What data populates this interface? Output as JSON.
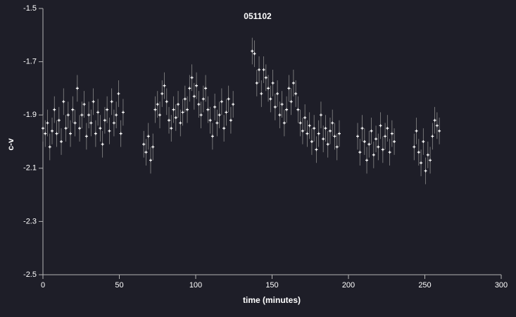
{
  "chart_data": {
    "type": "scatter",
    "title": "051102",
    "x_label": "time (minutes)",
    "y_label": "c-v",
    "xlim": [
      0,
      300
    ],
    "xticks": [
      0,
      50,
      100,
      150,
      200,
      250,
      300
    ],
    "ylim": [
      -2.5,
      -1.5
    ],
    "yticks": [
      -1.5,
      -1.7,
      -1.9,
      -2.1,
      -2.3,
      -2.5
    ],
    "background": "#1e1e28",
    "axis_color": "#b4b4b4",
    "series": [
      {
        "color": "#ffffff",
        "error_color": "#8a8a8a",
        "yerr": 0.05,
        "x": [
          0,
          1.5,
          3,
          4.5,
          6,
          7.5,
          9,
          10.5,
          12,
          13.5,
          15,
          16.5,
          18,
          19.5,
          21,
          22.5,
          24,
          25.5,
          27,
          28.5,
          30,
          31.5,
          33,
          34.5,
          36,
          37.5,
          39,
          40.5,
          42,
          43.5,
          45,
          46.5,
          48,
          49.5,
          51,
          52.5,
          66,
          67.5,
          69,
          70.5,
          72,
          73.5,
          75,
          76.5,
          78,
          79.5,
          81,
          82.5,
          84,
          85.5,
          87,
          88.5,
          90,
          91.5,
          93,
          94.5,
          96,
          97.5,
          99,
          100.5,
          102,
          103.5,
          105,
          106.5,
          108,
          109.5,
          111,
          112.5,
          114,
          115.5,
          117,
          118.5,
          120,
          121.5,
          123,
          124.5,
          137,
          138.5,
          140,
          141.5,
          143,
          144.5,
          146,
          147.5,
          149,
          150.5,
          152,
          153.5,
          155,
          156.5,
          158,
          159.5,
          161,
          162.5,
          164,
          165.5,
          167,
          168.5,
          170,
          171.5,
          173,
          174.5,
          176,
          177.5,
          179,
          180.5,
          182,
          183.5,
          185,
          186.5,
          188,
          189.5,
          191,
          192.5,
          194,
          206,
          207.5,
          209,
          210.5,
          212,
          213.5,
          215,
          216.5,
          218,
          219.5,
          221,
          222.5,
          224,
          225.5,
          227,
          228.5,
          230,
          243,
          244.5,
          246,
          247.5,
          249,
          250.5,
          252,
          253.5,
          255,
          256.5,
          258,
          259.5
        ],
        "values": [
          -1.95,
          -1.97,
          -1.93,
          -2.02,
          -1.96,
          -1.88,
          -1.97,
          -1.92,
          -2.0,
          -1.85,
          -1.95,
          -1.9,
          -1.97,
          -1.88,
          -1.93,
          -1.8,
          -1.95,
          -1.9,
          -1.86,
          -1.98,
          -1.9,
          -1.93,
          -1.85,
          -1.97,
          -1.89,
          -1.95,
          -2.01,
          -1.92,
          -1.88,
          -1.96,
          -1.85,
          -1.93,
          -1.9,
          -1.82,
          -1.97,
          -1.89,
          -2.01,
          -2.04,
          -1.98,
          -2.07,
          -2.02,
          -1.88,
          -1.86,
          -1.9,
          -1.82,
          -1.79,
          -1.85,
          -1.92,
          -1.95,
          -1.88,
          -1.91,
          -1.86,
          -1.93,
          -1.89,
          -1.84,
          -1.88,
          -1.8,
          -1.76,
          -1.83,
          -1.79,
          -1.86,
          -1.9,
          -1.84,
          -1.8,
          -1.88,
          -1.92,
          -1.98,
          -1.87,
          -1.93,
          -1.9,
          -1.85,
          -1.95,
          -1.89,
          -1.84,
          -1.92,
          -1.86,
          -1.66,
          -1.67,
          -1.78,
          -1.73,
          -1.82,
          -1.73,
          -1.76,
          -1.8,
          -1.84,
          -1.78,
          -1.87,
          -1.82,
          -1.9,
          -1.86,
          -1.93,
          -1.88,
          -1.8,
          -1.85,
          -1.78,
          -1.82,
          -1.88,
          -1.93,
          -1.96,
          -1.91,
          -1.97,
          -1.94,
          -2.0,
          -1.95,
          -2.03,
          -1.97,
          -1.9,
          -1.99,
          -1.95,
          -2.01,
          -1.96,
          -1.93,
          -1.98,
          -2.02,
          -1.97,
          -1.98,
          -2.04,
          -1.95,
          -2.0,
          -2.07,
          -2.01,
          -1.96,
          -2.05,
          -1.99,
          -2.02,
          -1.94,
          -2.03,
          -1.98,
          -1.95,
          -2.04,
          -1.97,
          -2.0,
          -2.02,
          -1.96,
          -2.04,
          -2.08,
          -2.0,
          -2.11,
          -2.05,
          -2.07,
          -1.98,
          -1.92,
          -1.94,
          -1.96
        ]
      }
    ]
  }
}
